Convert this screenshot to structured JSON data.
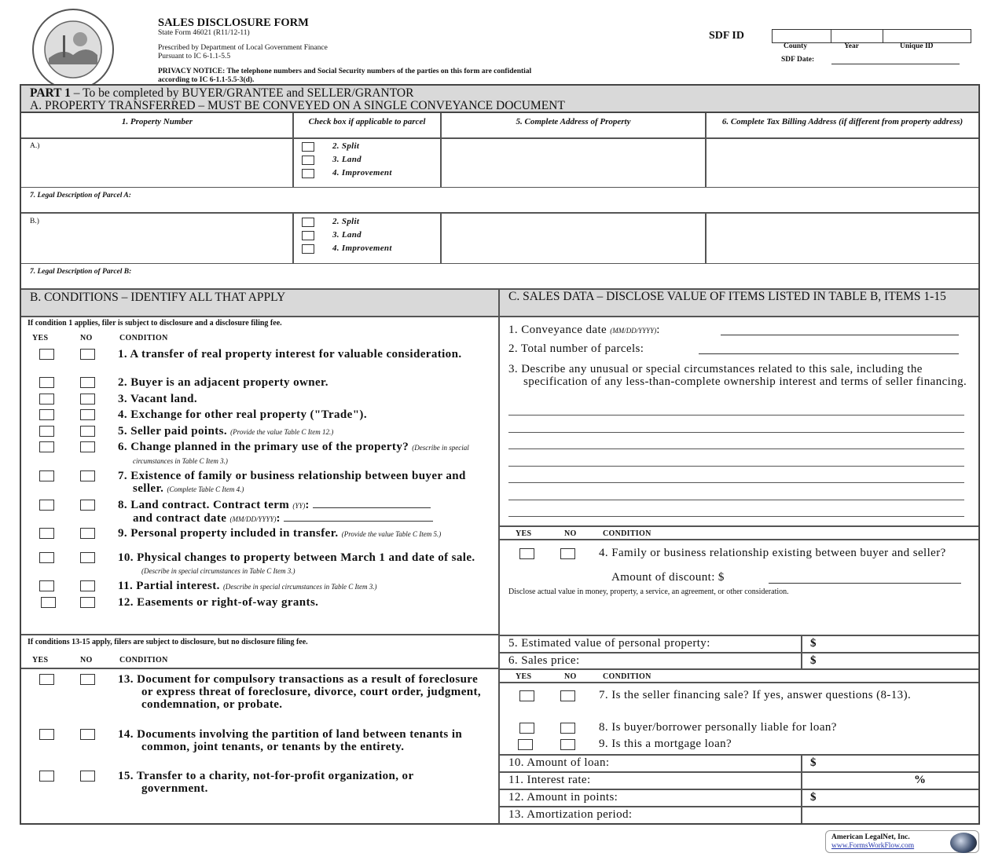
{
  "header": {
    "seal_text": "SEAL OF THE STATE OF INDIANA 1816",
    "title": "SALES DISCLOSURE FORM",
    "state_form": "State Form 46021 (R11/12-11)",
    "prescribed": "Prescribed by Department of Local Government Finance",
    "pursuant": "Pursuant to IC 6-1.1-5.5",
    "privacy_line1": "PRIVACY NOTICE: The telephone numbers and Social Security numbers of the parties on this form are confidential",
    "privacy_line2": "according to IC 6-1.1-5.5-3(d).",
    "sdf_id_label": "SDF ID",
    "sdf_county": "County",
    "sdf_year": "Year",
    "sdf_unique": "Unique ID",
    "sdf_date_label": "SDF Date:"
  },
  "part1": {
    "title_bold": "PART 1",
    "title_rest": " – To be completed by BUYER/GRANTEE and SELLER/GRANTOR",
    "section_a": "A. PROPERTY TRANSFERRED – MUST BE CONVEYED ON A SINGLE CONVEYANCE DOCUMENT",
    "columns": [
      "1. Property Number",
      "Check box if applicable to parcel",
      "5. Complete Address of Property",
      "6. Complete Tax Billing Address (if different from property address)"
    ],
    "checks": [
      "2. Split",
      "3. Land",
      "4. Improvement"
    ],
    "parcel_a": "A.)",
    "parcel_b": "B.)",
    "legal_a": "7. Legal Description of Parcel A:",
    "legal_b": "7. Legal Description of Parcel B:"
  },
  "section_b": {
    "title": "B. CONDITIONS – IDENTIFY ALL THAT APPLY",
    "note1": "If condition 1 applies, filer is subject to disclosure and a disclosure filing fee.",
    "note2": "If conditions 13-15 apply, filers are subject to disclosure, but no disclosure filing fee.",
    "yes": "YES",
    "no": "NO",
    "condition": "CONDITION",
    "items": [
      {
        "num": "1.",
        "text": "A transfer of real property interest for valuable consideration.",
        "note": ""
      },
      {
        "num": "2.",
        "text": "Buyer is an adjacent property owner.",
        "note": ""
      },
      {
        "num": "3.",
        "text": "Vacant land.",
        "note": ""
      },
      {
        "num": "4.",
        "text": "Exchange for other real property (\"Trade\").",
        "note": ""
      },
      {
        "num": "5.",
        "text": "Seller paid points.",
        "note": "(Provide the value Table C Item 12.)"
      },
      {
        "num": "6.",
        "text": "Change planned in the primary use of the property?",
        "note": "(Describe in special circumstances in Table C Item 3.)"
      },
      {
        "num": "7.",
        "text": "Existence of family or business relationship between buyer and seller.",
        "note": "(Complete Table C Item 4.)"
      },
      {
        "num": "8.",
        "text": "Land contract.  Contract term",
        "note": "(YY)",
        "text2": "and contract date",
        "note2": "(MM/DD/YYYY)"
      },
      {
        "num": "9.",
        "text": "Personal property included in transfer.",
        "note": "(Provide the value Table C Item 5.)"
      },
      {
        "num": "10.",
        "text": "Physical changes to property between March 1 and date of sale.",
        "note": "(Describe in special circumstances in Table C Item 3.)"
      },
      {
        "num": "11.",
        "text": "Partial interest.",
        "note": "(Describe in special circumstances in Table C Item 3.)"
      },
      {
        "num": "12.",
        "text": "Easements or right-of-way grants.",
        "note": ""
      },
      {
        "num": "13.",
        "text": "Document for compulsory transactions as a result of foreclosure or express threat of foreclosure, divorce, court order, judgment, condemnation, or probate.",
        "note": ""
      },
      {
        "num": "14.",
        "text": "Documents involving the partition of land between tenants in common, joint tenants, or tenants by the entirety.",
        "note": ""
      },
      {
        "num": "15.",
        "text": "Transfer to a charity, not-for-profit organization, or government.",
        "note": ""
      }
    ]
  },
  "section_c": {
    "title": "C. SALES DATA – DISCLOSE VALUE OF ITEMS LISTED IN TABLE B, ITEMS 1-15",
    "item1": "1. Conveyance date",
    "item1_fmt": "(MM/DD/YYYY)",
    "item2": "2. Total number of parcels:",
    "item3": "3. Describe any unusual or special circumstances related to this sale, including the specification of any less-than-complete ownership interest and terms of seller financing.",
    "yes": "YES",
    "no": "NO",
    "condition": "CONDITION",
    "item4": "4. Family or business relationship existing between buyer and seller?",
    "item4_discount": "Amount of discount:  $",
    "disclose_note": "Disclose actual value in money, property, a service, an agreement, or other consideration.",
    "item5": "5. Estimated value of personal property:",
    "item6": "6. Sales price:",
    "item7": "7. Is the seller financing sale?  If yes, answer questions (8-13).",
    "item8": "8. Is buyer/borrower personally liable for loan?",
    "item9": "9. Is this a mortgage loan?",
    "item10": "10. Amount of loan:",
    "item11": "11. Interest rate:",
    "item12": "12. Amount in points:",
    "item13": "13. Amortization period:",
    "dollar": "$",
    "percent": "%"
  },
  "footer": {
    "company": "American LegalNet, Inc.",
    "url": "www.FormsWorkFlow.com"
  }
}
